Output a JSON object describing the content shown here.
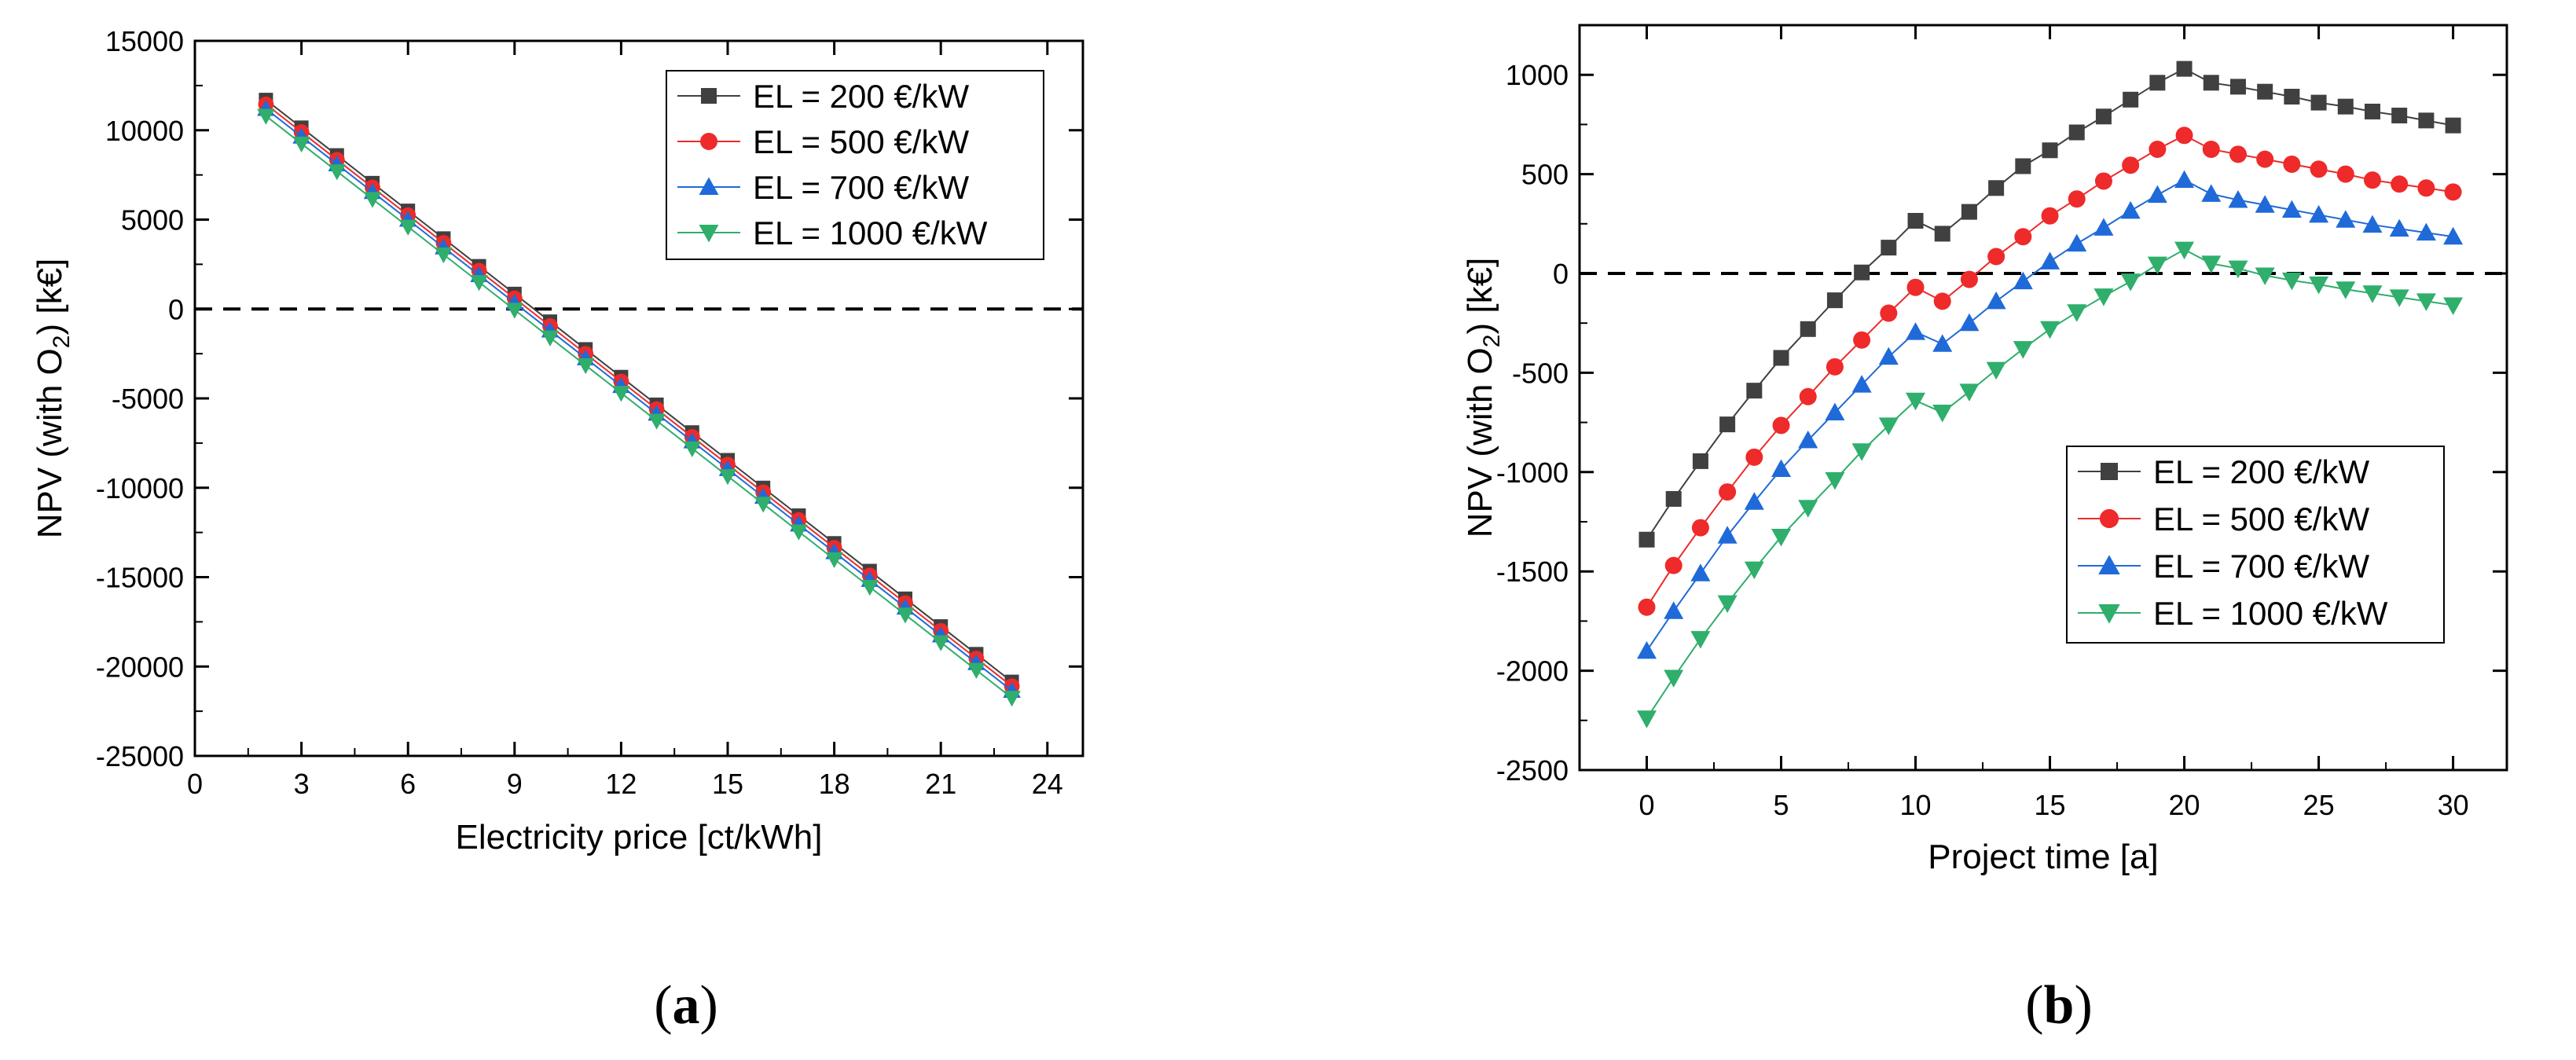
{
  "chart_data": [
    {
      "id": "a",
      "type": "line",
      "caption": "(a)",
      "caption_letter": "a",
      "title": "",
      "xlabel": "Electricity price [ct/kWh]",
      "ylabel": "NPV (with O",
      "ylabel_sub": "2",
      "ylabel_suffix": ") [k€]",
      "xlim": [
        0,
        25
      ],
      "ylim": [
        -25000,
        15000
      ],
      "xticks": [
        0,
        3,
        6,
        9,
        12,
        15,
        18,
        21,
        24
      ],
      "yticks": [
        -25000,
        -20000,
        -15000,
        -10000,
        -5000,
        0,
        5000,
        10000,
        15000
      ],
      "reference_line": 0,
      "legend_position": "top-right",
      "x": [
        2,
        3,
        4,
        5,
        6,
        7,
        8,
        9,
        10,
        11,
        12,
        13,
        14,
        15,
        16,
        17,
        18,
        19,
        20,
        21,
        22,
        23
      ],
      "series": [
        {
          "name": "EL = 200 €/kW",
          "color": "#404040",
          "marker": "square",
          "values": [
            11700,
            10150,
            8600,
            7050,
            5500,
            3950,
            2400,
            850,
            -700,
            -2250,
            -3800,
            -5350,
            -6900,
            -8450,
            -10000,
            -11550,
            -13100,
            -14650,
            -16200,
            -17750,
            -19300,
            -20850
          ]
        },
        {
          "name": "EL = 500 €/kW",
          "color": "#ee2a2a",
          "marker": "circle",
          "values": [
            11450,
            9900,
            8350,
            6800,
            5250,
            3700,
            2150,
            600,
            -950,
            -2500,
            -4050,
            -5600,
            -7150,
            -8700,
            -10250,
            -11800,
            -13350,
            -14900,
            -16450,
            -18000,
            -19550,
            -21100
          ]
        },
        {
          "name": "EL = 700 €/kW",
          "color": "#1f6ad8",
          "marker": "triangle-up",
          "values": [
            11200,
            9650,
            8100,
            6550,
            5000,
            3450,
            1900,
            350,
            -1200,
            -2750,
            -4300,
            -5850,
            -7400,
            -8950,
            -10500,
            -12050,
            -13600,
            -15150,
            -16700,
            -18250,
            -19800,
            -21350
          ]
        },
        {
          "name": "EL = 1000 €/kW",
          "color": "#2fae6c",
          "marker": "triangle-down",
          "values": [
            10800,
            9250,
            7700,
            6150,
            4600,
            3050,
            1500,
            -50,
            -1600,
            -3150,
            -4700,
            -6250,
            -7800,
            -9350,
            -10900,
            -12450,
            -14000,
            -15550,
            -17100,
            -18650,
            -20200,
            -21750
          ]
        }
      ]
    },
    {
      "id": "b",
      "type": "line",
      "caption": "(b)",
      "caption_letter": "b",
      "title": "",
      "xlabel": "Project time [a]",
      "ylabel": "NPV (with O",
      "ylabel_sub": "2",
      "ylabel_suffix": ") [k€]",
      "xlim": [
        -2.5,
        32
      ],
      "ylim": [
        -2500,
        1250
      ],
      "xticks": [
        0,
        5,
        10,
        15,
        20,
        25,
        30
      ],
      "yticks": [
        -2500,
        -2000,
        -1500,
        -1000,
        -500,
        0,
        500,
        1000
      ],
      "reference_line": 0,
      "legend_position": "center-right",
      "x": [
        0,
        1,
        2,
        3,
        4,
        5,
        6,
        7,
        8,
        9,
        10,
        11,
        12,
        13,
        14,
        15,
        16,
        17,
        18,
        19,
        20,
        21,
        22,
        23,
        24,
        25,
        26,
        27,
        28,
        29,
        30
      ],
      "series": [
        {
          "name": "EL = 200 €/kW",
          "color": "#404040",
          "marker": "square",
          "values": [
            -1340,
            -1135,
            -945,
            -760,
            -590,
            -425,
            -280,
            -135,
            5,
            130,
            265,
            200,
            310,
            430,
            540,
            620,
            710,
            790,
            875,
            960,
            1030,
            960,
            940,
            915,
            890,
            860,
            840,
            815,
            795,
            770,
            745
          ]
        },
        {
          "name": "EL = 500 €/kW",
          "color": "#ee2a2a",
          "marker": "circle",
          "values": [
            -1680,
            -1470,
            -1280,
            -1100,
            -925,
            -765,
            -620,
            -470,
            -335,
            -200,
            -70,
            -140,
            -30,
            85,
            185,
            290,
            375,
            465,
            545,
            625,
            695,
            625,
            600,
            575,
            550,
            525,
            500,
            470,
            450,
            430,
            410
          ]
        },
        {
          "name": "EL = 700 €/kW",
          "color": "#1f6ad8",
          "marker": "triangle-up",
          "values": [
            -1900,
            -1700,
            -1510,
            -1320,
            -1150,
            -985,
            -840,
            -700,
            -560,
            -420,
            -295,
            -355,
            -250,
            -140,
            -40,
            60,
            150,
            230,
            315,
            395,
            470,
            400,
            370,
            345,
            320,
            295,
            270,
            245,
            225,
            205,
            185
          ]
        },
        {
          "name": "EL = 1000 €/kW",
          "color": "#2fae6c",
          "marker": "triangle-down",
          "values": [
            -2240,
            -2035,
            -1840,
            -1660,
            -1490,
            -1325,
            -1180,
            -1040,
            -895,
            -765,
            -640,
            -700,
            -595,
            -485,
            -380,
            -280,
            -195,
            -115,
            -40,
            45,
            120,
            50,
            25,
            -10,
            -35,
            -55,
            -80,
            -100,
            -120,
            -140,
            -160
          ]
        }
      ]
    }
  ]
}
